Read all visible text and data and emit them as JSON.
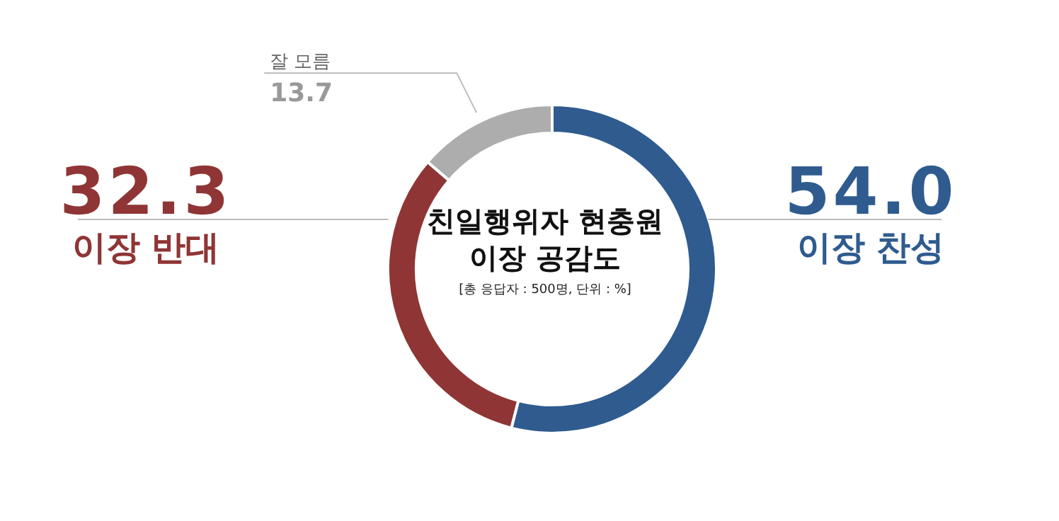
{
  "chart_data": {
    "type": "donut",
    "title": "친일행위자 현충원 이장 공감도",
    "subtitle": "[총 응답자 : 500명, 단위 : %]",
    "categories": [
      "이장 찬성",
      "이장 반대",
      "잘 모름"
    ],
    "values": [
      54.0,
      32.3,
      13.7
    ],
    "colors": [
      "#2f5b8f",
      "#8f3535",
      "#adadad"
    ],
    "value_labels": [
      "54.0",
      "32.3",
      "13.7"
    ]
  }
}
